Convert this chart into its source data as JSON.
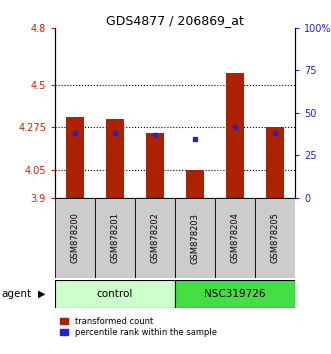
{
  "title": "GDS4877 / 206869_at",
  "samples": [
    "GSM878200",
    "GSM878201",
    "GSM878202",
    "GSM878203",
    "GSM878204",
    "GSM878205"
  ],
  "red_bar_heights": [
    4.33,
    4.32,
    4.245,
    4.05,
    4.56,
    4.275
  ],
  "blue_square_values": [
    4.245,
    4.245,
    4.235,
    4.215,
    4.275,
    4.245
  ],
  "y_min": 3.9,
  "y_max": 4.8,
  "y_ticks_left": [
    3.9,
    4.05,
    4.275,
    4.5,
    4.8
  ],
  "y_ticks_left_labels": [
    "3.9",
    "4.05",
    "4.275",
    "4.5",
    "4.8"
  ],
  "y_ticks_right": [
    0,
    25,
    50,
    75,
    100
  ],
  "y_ticks_right_labels": [
    "0",
    "25",
    "50",
    "75",
    "100%"
  ],
  "dotted_lines": [
    4.05,
    4.275,
    4.5
  ],
  "groups": [
    {
      "label": "control",
      "samples": [
        0,
        1,
        2
      ],
      "color": "#ccffcc"
    },
    {
      "label": "NSC319726",
      "samples": [
        3,
        4,
        5
      ],
      "color": "#44dd44"
    }
  ],
  "bar_color": "#aa2200",
  "square_color": "#2222cc",
  "axis_color_left": "#cc2200",
  "axis_color_right": "#2222cc",
  "label_box_color": "#cccccc",
  "agent_label": "agent",
  "legend_red_label": "transformed count",
  "legend_blue_label": "percentile rank within the sample"
}
